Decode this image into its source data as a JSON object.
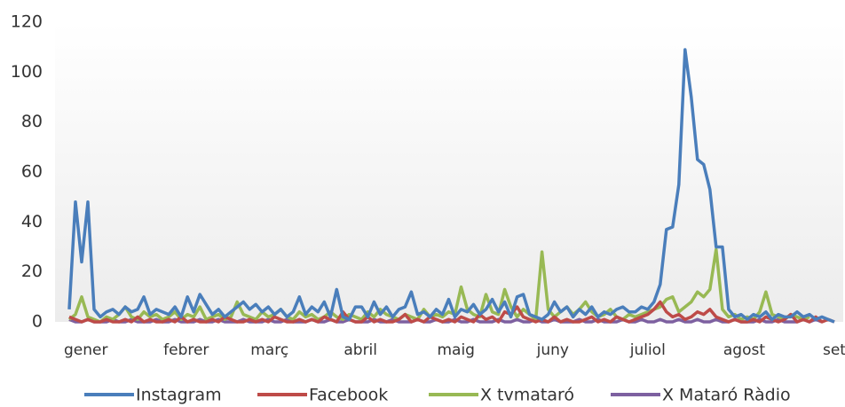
{
  "chart_data": {
    "type": "line",
    "categories": [
      "gener",
      null,
      null,
      null,
      null,
      null,
      null,
      null,
      null,
      null,
      null,
      null,
      null,
      null,
      null,
      null,
      "febrer",
      null,
      null,
      null,
      null,
      null,
      null,
      null,
      null,
      null,
      null,
      null,
      null,
      null,
      "març",
      null,
      null,
      null,
      null,
      null,
      null,
      null,
      null,
      null,
      null,
      null,
      null,
      null,
      null,
      "abril",
      null,
      null,
      null,
      null,
      null,
      null,
      null,
      null,
      null,
      null,
      null,
      null,
      null,
      null,
      "maig",
      null,
      null,
      null,
      null,
      null,
      null,
      null,
      null,
      null,
      null,
      null,
      null,
      null,
      null,
      null,
      "juny",
      null,
      null,
      null,
      null,
      null,
      null,
      null,
      null,
      null,
      null,
      null,
      null,
      null,
      null,
      "juliol",
      null,
      null,
      null,
      null,
      null,
      null,
      null,
      null,
      null,
      null,
      null,
      null,
      null,
      null,
      "agost",
      null,
      null,
      null,
      null,
      null,
      null,
      null,
      null,
      null,
      null,
      null,
      null,
      null,
      null,
      null,
      "set",
      null
    ],
    "series": [
      {
        "name": "Instagram",
        "color": "#4a7ebb",
        "values": [
          5,
          48,
          24,
          48,
          5,
          2,
          4,
          5,
          3,
          6,
          4,
          5,
          10,
          3,
          5,
          4,
          3,
          6,
          2,
          10,
          4,
          11,
          7,
          3,
          5,
          2,
          4,
          6,
          8,
          5,
          7,
          4,
          6,
          3,
          5,
          2,
          4,
          10,
          3,
          6,
          4,
          8,
          2,
          13,
          2,
          1,
          6,
          6,
          2,
          8,
          3,
          6,
          2,
          5,
          6,
          12,
          3,
          4,
          2,
          5,
          3,
          9,
          2,
          5,
          4,
          7,
          3,
          5,
          9,
          4,
          8,
          2,
          10,
          11,
          3,
          2,
          1,
          3,
          8,
          4,
          6,
          2,
          5,
          3,
          6,
          2,
          4,
          3,
          5,
          6,
          4,
          4,
          6,
          5,
          8,
          15,
          37,
          38,
          55,
          109,
          90,
          65,
          63,
          53,
          30,
          30,
          5,
          2,
          3,
          1,
          3,
          2,
          4,
          1,
          3,
          2,
          2,
          4,
          2,
          3,
          1,
          2,
          1,
          0
        ]
      },
      {
        "name": "Facebook",
        "color": "#be4b48",
        "values": [
          2,
          1,
          0,
          1,
          0,
          0,
          1,
          0,
          0,
          1,
          0,
          2,
          0,
          1,
          0,
          0,
          1,
          0,
          2,
          0,
          1,
          0,
          0,
          1,
          0,
          2,
          1,
          0,
          0,
          1,
          0,
          1,
          0,
          2,
          1,
          0,
          0,
          1,
          0,
          1,
          0,
          2,
          1,
          0,
          4,
          1,
          0,
          0,
          2,
          0,
          1,
          0,
          0,
          1,
          3,
          0,
          1,
          0,
          2,
          1,
          0,
          1,
          0,
          2,
          1,
          0,
          3,
          1,
          2,
          0,
          4,
          3,
          6,
          2,
          1,
          0,
          1,
          0,
          2,
          0,
          1,
          0,
          0,
          1,
          2,
          0,
          1,
          0,
          2,
          1,
          0,
          1,
          2,
          3,
          5,
          8,
          4,
          2,
          3,
          1,
          2,
          4,
          3,
          5,
          2,
          1,
          0,
          1,
          0,
          0,
          1,
          0,
          2,
          1,
          0,
          1,
          3,
          0,
          1,
          0,
          2,
          0,
          1,
          0
        ]
      },
      {
        "name": "X tvmataró",
        "color": "#98b954",
        "values": [
          1,
          3,
          10,
          2,
          1,
          0,
          2,
          1,
          3,
          6,
          2,
          1,
          4,
          2,
          3,
          1,
          2,
          4,
          1,
          3,
          2,
          6,
          1,
          2,
          3,
          1,
          2,
          8,
          3,
          2,
          1,
          4,
          2,
          3,
          5,
          2,
          1,
          4,
          2,
          3,
          1,
          2,
          4,
          2,
          1,
          3,
          2,
          1,
          4,
          2,
          5,
          3,
          2,
          1,
          3,
          2,
          1,
          5,
          2,
          3,
          2,
          4,
          3,
          14,
          5,
          3,
          2,
          11,
          4,
          3,
          13,
          6,
          2,
          5,
          3,
          1,
          28,
          5,
          2,
          4,
          6,
          3,
          5,
          8,
          4,
          2,
          3,
          5,
          2,
          1,
          3,
          2,
          3,
          4,
          5,
          6,
          9,
          10,
          4,
          6,
          8,
          12,
          10,
          13,
          29,
          5,
          2,
          3,
          1,
          2,
          1,
          4,
          12,
          3,
          2,
          1,
          3,
          2,
          1,
          2,
          null,
          null,
          null,
          null
        ]
      },
      {
        "name": "X Mataró Ràdio",
        "color": "#7d60a0",
        "values": [
          1,
          0,
          0,
          1,
          0,
          0,
          0,
          1,
          0,
          0,
          1,
          0,
          0,
          0,
          1,
          0,
          0,
          1,
          0,
          0,
          0,
          1,
          0,
          0,
          1,
          0,
          0,
          0,
          1,
          0,
          0,
          0,
          1,
          0,
          0,
          1,
          0,
          0,
          0,
          1,
          0,
          0,
          1,
          0,
          0,
          1,
          0,
          0,
          0,
          1,
          0,
          0,
          1,
          0,
          0,
          0,
          1,
          0,
          0,
          1,
          0,
          0,
          1,
          0,
          0,
          1,
          0,
          0,
          0,
          1,
          0,
          0,
          1,
          0,
          0,
          1,
          0,
          0,
          1,
          0,
          0,
          0,
          1,
          0,
          0,
          1,
          0,
          0,
          0,
          1,
          0,
          0,
          1,
          0,
          0,
          1,
          0,
          0,
          1,
          0,
          0,
          1,
          0,
          0,
          1,
          0,
          0,
          1,
          0,
          0,
          0,
          1,
          0,
          0,
          1,
          0,
          0,
          0,
          1,
          0,
          1,
          0,
          null,
          null
        ]
      }
    ],
    "ylim": [
      0,
      120
    ],
    "yticks": [
      0,
      20,
      40,
      60,
      80,
      100,
      120
    ],
    "grid": false,
    "legend": "bottom"
  }
}
